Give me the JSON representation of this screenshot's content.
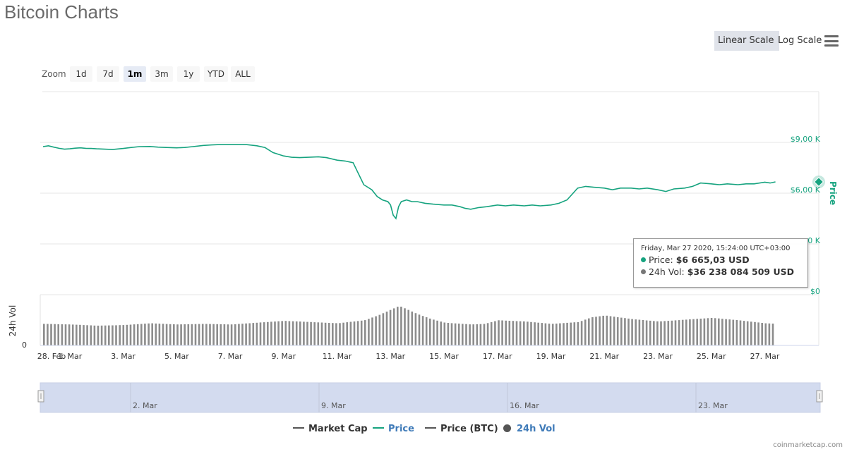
{
  "page": {
    "title": "Bitcoin Charts"
  },
  "scale_buttons": {
    "linear": "Linear Scale",
    "log": "Log Scale",
    "active": "linear"
  },
  "zoom": {
    "label": "Zoom",
    "options": [
      "1d",
      "7d",
      "1m",
      "3m",
      "1y",
      "YTD",
      "ALL"
    ],
    "active": "1m"
  },
  "tooltip": {
    "time": "Friday, Mar 27 2020, 15:24:00 UTC+03:00",
    "price_label": "Price:",
    "price_value": "$6 665,03 USD",
    "vol_label": "24h Vol:",
    "vol_value": "$36 238 084 509 USD"
  },
  "navigator": {
    "labels": [
      "2. Mar",
      "9. Mar",
      "16. Mar",
      "23. Mar"
    ]
  },
  "legend": [
    {
      "name": "Market Cap",
      "color": "#555555",
      "marker": "line"
    },
    {
      "name": "Price",
      "color": "#16a37f",
      "marker": "line"
    },
    {
      "name": "Price (BTC)",
      "color": "#555555",
      "marker": "line"
    },
    {
      "name": "24h Vol",
      "color": "#555555",
      "marker": "dot"
    }
  ],
  "credits": "coinmarketcap.com",
  "colors": {
    "price": "#16a37f",
    "volume": "#8c8c8c",
    "navigator_fill": "#d3dbef",
    "grid": "#e6e6e6"
  },
  "chart_data": {
    "type": "line",
    "x_ticks": [
      "28. Feb",
      "1. Mar",
      "3. Mar",
      "5. Mar",
      "7. Mar",
      "9. Mar",
      "11. Mar",
      "13. Mar",
      "15. Mar",
      "17. Mar",
      "19. Mar",
      "21. Mar",
      "23. Mar",
      "25. Mar",
      "27. Mar"
    ],
    "price_axis": {
      "label": "Price",
      "ticks": [
        "$0",
        "0 K",
        "$6,00 K",
        "$9,00 K"
      ],
      "tick_values": [
        0,
        3000,
        6000,
        9000
      ],
      "ylim": [
        0,
        12000
      ]
    },
    "volume_axis": {
      "label": "24h Vol",
      "ticks": [
        "0"
      ]
    },
    "series": [
      {
        "name": "Price",
        "unit": "USD",
        "x": [
          0,
          0.2,
          0.4,
          0.6,
          0.8,
          1.0,
          1.2,
          1.4,
          1.6,
          1.8,
          2.0,
          2.3,
          2.6,
          3.0,
          3.3,
          3.6,
          4.0,
          4.3,
          4.6,
          5.0,
          5.3,
          5.6,
          6.0,
          6.3,
          6.6,
          7.0,
          7.3,
          7.6,
          8.0,
          8.3,
          8.6,
          9.0,
          9.3,
          9.6,
          10.0,
          10.3,
          10.6,
          11.0,
          11.3,
          11.6,
          12.0,
          12.3,
          12.5,
          12.7,
          12.9,
          13.0,
          13.1,
          13.2,
          13.3,
          13.4,
          13.6,
          13.8,
          14.0,
          14.3,
          14.6,
          15.0,
          15.3,
          15.6,
          15.8,
          16.0,
          16.3,
          16.6,
          17.0,
          17.3,
          17.6,
          18.0,
          18.3,
          18.6,
          19.0,
          19.3,
          19.6,
          20.0,
          20.3,
          20.6,
          21.0,
          21.3,
          21.6,
          22.0,
          22.3,
          22.6,
          23.0,
          23.3,
          23.6,
          24.0,
          24.3,
          24.6,
          25.0,
          25.3,
          25.6,
          26.0,
          26.3,
          26.6,
          27.0,
          27.2,
          27.4
        ],
        "values": [
          8750,
          8800,
          8720,
          8650,
          8600,
          8620,
          8660,
          8680,
          8650,
          8640,
          8620,
          8600,
          8580,
          8640,
          8700,
          8750,
          8760,
          8720,
          8700,
          8680,
          8700,
          8750,
          8820,
          8850,
          8870,
          8880,
          8880,
          8870,
          8800,
          8700,
          8400,
          8200,
          8120,
          8100,
          8130,
          8150,
          8100,
          7950,
          7900,
          7800,
          6500,
          6200,
          5800,
          5600,
          5500,
          5300,
          4700,
          4500,
          5200,
          5500,
          5600,
          5500,
          5500,
          5400,
          5350,
          5300,
          5300,
          5200,
          5100,
          5050,
          5150,
          5200,
          5300,
          5250,
          5300,
          5250,
          5300,
          5250,
          5300,
          5400,
          5600,
          6300,
          6400,
          6350,
          6300,
          6200,
          6300,
          6300,
          6250,
          6300,
          6200,
          6100,
          6250,
          6300,
          6400,
          6600,
          6550,
          6500,
          6550,
          6500,
          6550,
          6550,
          6650,
          6600,
          6665.03
        ]
      },
      {
        "name": "24h Vol",
        "unit": "USD",
        "x": [
          0,
          1,
          2,
          3,
          4,
          5,
          6,
          7,
          8,
          9,
          10,
          11,
          12,
          12.5,
          13,
          13.3,
          13.6,
          14,
          14.5,
          15,
          16,
          16.5,
          17,
          18,
          19,
          20,
          20.5,
          21,
          22,
          23,
          24,
          25,
          26,
          27,
          27.4
        ],
        "values": [
          36,
          35,
          33,
          34,
          37,
          35,
          36,
          35,
          38,
          41,
          39,
          37,
          42,
          50,
          60,
          66,
          60,
          52,
          44,
          38,
          35,
          36,
          42,
          40,
          36,
          39,
          47,
          50,
          44,
          40,
          43,
          46,
          42,
          37,
          36.24
        ]
      }
    ]
  }
}
